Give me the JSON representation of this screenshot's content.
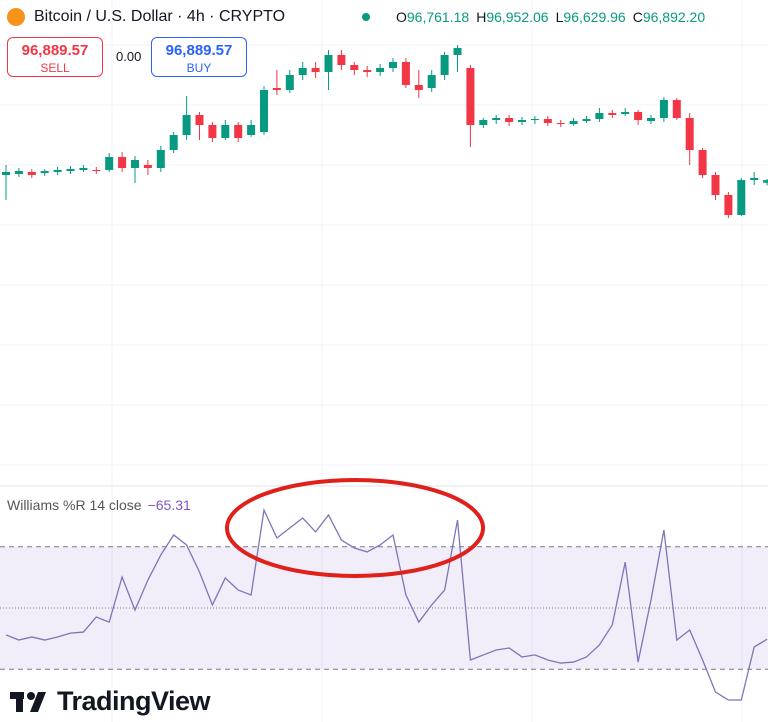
{
  "header": {
    "symbol": "Bitcoin / U.S. Dollar · 4h · CRYPTO",
    "ohlc": [
      {
        "key": "O",
        "value": "96,761.18"
      },
      {
        "key": "H",
        "value": "96,952.06"
      },
      {
        "key": "L",
        "value": "96,629.96"
      },
      {
        "key": "C",
        "value": "96,892.20"
      }
    ]
  },
  "trade": {
    "sell_price": "96,889.57",
    "sell": "SELL",
    "spread": "0.00",
    "buy_price": "96,889.57",
    "buy": "BUY"
  },
  "logo": "TradingView",
  "chart_data": {
    "type": "candlestick",
    "ylim": [
      81900,
      105900
    ],
    "up_color": "#089981",
    "down_color": "#f23645",
    "open": [
      97150,
      97200,
      97300,
      97250,
      97300,
      97350,
      97400,
      97400,
      97400,
      98050,
      97500,
      97650,
      97500,
      98400,
      99150,
      100150,
      99650,
      99000,
      99650,
      99150,
      99300,
      101500,
      101400,
      102150,
      102500,
      102300,
      103150,
      102650,
      102400,
      102300,
      102500,
      102800,
      101650,
      101500,
      102150,
      103150,
      102500,
      99650,
      99900,
      100000,
      99800,
      99900,
      99950,
      99750,
      99700,
      99850,
      99950,
      100250,
      100200,
      100300,
      99850,
      100000,
      100900,
      100000,
      98400,
      97150,
      96150,
      95150,
      96900,
      96761.18
    ],
    "high": [
      97650,
      97500,
      97450,
      97450,
      97550,
      97600,
      97650,
      97550,
      98250,
      98300,
      98100,
      97900,
      98600,
      99300,
      101100,
      100300,
      99800,
      99900,
      99800,
      99900,
      101600,
      102400,
      102400,
      102800,
      102800,
      103400,
      103400,
      102800,
      102600,
      102700,
      103000,
      103000,
      102400,
      102400,
      103300,
      103650,
      102650,
      100000,
      100150,
      100150,
      100050,
      100100,
      100100,
      99900,
      100000,
      100100,
      100500,
      100400,
      100500,
      100400,
      100150,
      101050,
      101000,
      100250,
      98500,
      97300,
      96300,
      97000,
      97300,
      96952.06
    ],
    "low": [
      95900,
      97050,
      97000,
      97100,
      97150,
      97200,
      97300,
      97200,
      97300,
      97300,
      96750,
      97150,
      97300,
      98250,
      98900,
      98900,
      98800,
      98900,
      98800,
      99050,
      99150,
      101150,
      101250,
      101900,
      102000,
      101400,
      102400,
      102150,
      102050,
      102100,
      102300,
      101500,
      101000,
      101300,
      101900,
      102300,
      98550,
      99500,
      99700,
      99600,
      99650,
      99700,
      99600,
      99550,
      99600,
      99750,
      99800,
      100000,
      100100,
      99650,
      99700,
      99800,
      99900,
      97650,
      97000,
      95900,
      95000,
      95100,
      96650,
      96629.96
    ],
    "close": [
      97300,
      97350,
      97150,
      97350,
      97400,
      97450,
      97500,
      97350,
      98050,
      97500,
      97900,
      97500,
      98400,
      99150,
      100150,
      99650,
      99000,
      99650,
      99000,
      99650,
      101400,
      101400,
      102150,
      102500,
      102300,
      103150,
      102650,
      102400,
      102300,
      102500,
      102800,
      101650,
      101400,
      102150,
      103150,
      103500,
      99650,
      99900,
      100000,
      99800,
      99900,
      99950,
      99750,
      99700,
      99850,
      99950,
      100250,
      100150,
      100300,
      99900,
      100000,
      100900,
      100000,
      98400,
      97150,
      96150,
      95150,
      96900,
      97000,
      96892.2
    ],
    "indicator": {
      "type": "line",
      "title": "Williams %R 14 close",
      "value_label": "−65.31",
      "color": "#7e75b8",
      "ylim": [
        -100,
        0
      ],
      "levels": [
        -20,
        -50,
        -80
      ],
      "values": [
        -63.2,
        -65.7,
        -64.2,
        -65.7,
        -64.2,
        -62.3,
        -61.8,
        -54.4,
        -56.9,
        -34.8,
        -51,
        -36.3,
        -24,
        -14.2,
        -19.1,
        -32.4,
        -48.5,
        -35.3,
        -41.2,
        -43.6,
        -2,
        -15.7,
        -10.8,
        -5.9,
        -12.7,
        -4.4,
        -16.7,
        -20.6,
        -22.5,
        -19.1,
        -14.2,
        -43.6,
        -56.9,
        -48.5,
        -41.2,
        -6.9,
        -75.5,
        -73,
        -70.6,
        -69.6,
        -74,
        -73,
        -75.5,
        -77,
        -76.5,
        -74,
        -68.1,
        -58.3,
        -27.5,
        -76.5,
        -46.1,
        -11.8,
        -65.7,
        -60.8,
        -75.5,
        -91.2,
        -95.1,
        -95.1,
        -69.1,
        -65.31
      ]
    }
  }
}
